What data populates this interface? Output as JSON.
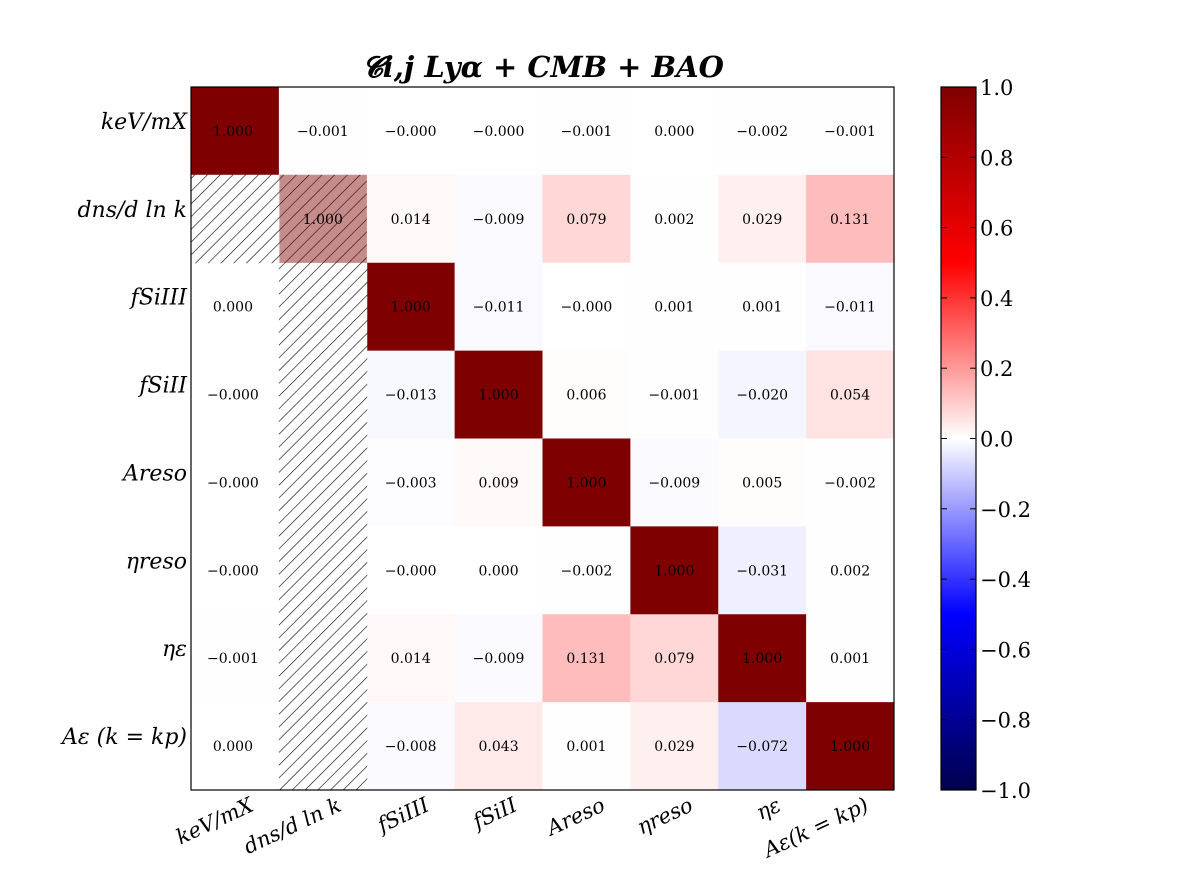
{
  "chart_data": {
    "type": "heatmap",
    "title": "𝓒i,j Lyα + CMB + BAO",
    "row_labels": [
      "keV/mX",
      "dns/d ln k",
      "fSiIII",
      "fSiII",
      "Areso",
      "ηreso",
      "ηε",
      "Aε (k = kp)"
    ],
    "col_labels": [
      "keV/mX",
      "dns/d ln k",
      "fSiIII",
      "fSiII",
      "Areso",
      "ηreso",
      "ηε",
      "Aε(k = kp)"
    ],
    "values": [
      [
        "1.000",
        "−0.001",
        "−0.000",
        "−0.000",
        "−0.001",
        "0.000",
        "−0.002",
        "−0.001"
      ],
      [
        null,
        "1.000",
        "0.014",
        "−0.009",
        "0.079",
        "0.002",
        "0.029",
        "0.131"
      ],
      [
        "0.000",
        null,
        "1.000",
        "−0.011",
        "−0.000",
        "0.001",
        "0.001",
        "−0.011"
      ],
      [
        "−0.000",
        null,
        "−0.013",
        "1.000",
        "0.006",
        "−0.001",
        "−0.020",
        "0.054"
      ],
      [
        "−0.000",
        null,
        "−0.003",
        "0.009",
        "1.000",
        "−0.009",
        "0.005",
        "−0.002"
      ],
      [
        "−0.000",
        null,
        "−0.000",
        "0.000",
        "−0.002",
        "1.000",
        "−0.031",
        "0.002"
      ],
      [
        "−0.001",
        null,
        "0.014",
        "−0.009",
        "0.131",
        "0.079",
        "1.000",
        "0.001"
      ],
      [
        "0.000",
        null,
        "−0.008",
        "0.043",
        "0.001",
        "0.029",
        "−0.072",
        "1.000"
      ]
    ],
    "colorscale": "seismic",
    "color_range": [
      -1.0,
      1.0
    ],
    "colorbar_ticks": [
      "1.0",
      "0.8",
      "0.6",
      "0.4",
      "0.2",
      "0.0",
      "−0.2",
      "−0.4",
      "−0.6",
      "−0.8",
      "−1.0"
    ],
    "hatched_cells": "rows 2–8 of column dns/d ln k (lower-left corner of row 2 column 1 also hatched)",
    "grid": false
  }
}
